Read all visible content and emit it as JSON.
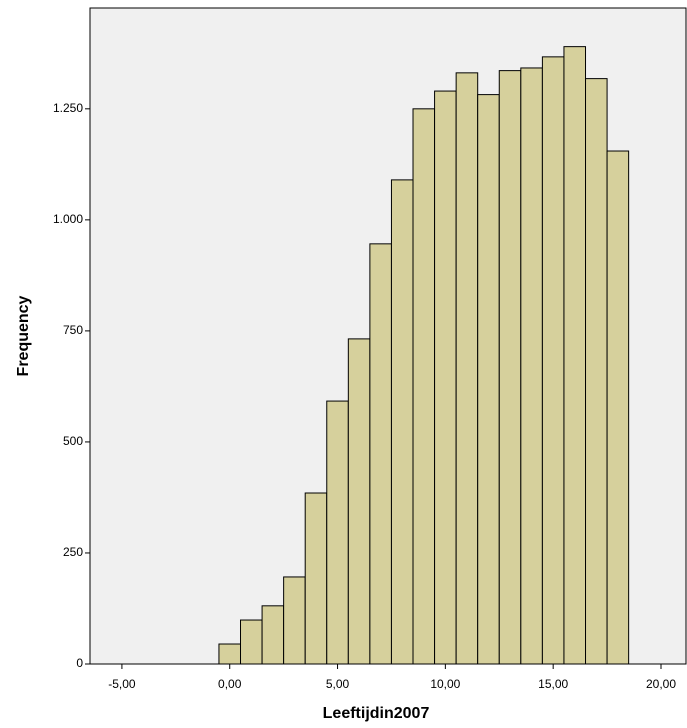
{
  "chart_data": {
    "type": "histogram",
    "x_label": "Leeftijdin2007",
    "y_label": "Frequency",
    "bins": [
      -0.5,
      0.5,
      1.5,
      2.5,
      3.5,
      4.5,
      5.5,
      6.5,
      7.5,
      8.5,
      9.5,
      10.5,
      11.5,
      12.5,
      13.5,
      14.5,
      15.5,
      16.5,
      17.5,
      18.5
    ],
    "values": [
      45,
      99,
      131,
      196,
      385,
      592,
      732,
      946,
      1090,
      1250,
      1290,
      1331,
      1282,
      1336,
      1342,
      1367,
      1390,
      1318,
      1155
    ],
    "color": "#d6d09c",
    "xlim": [
      -6.48,
      21.16
    ],
    "xticks": [
      {
        "value": -5,
        "label": "-5,00"
      },
      {
        "value": 0,
        "label": "0,00"
      },
      {
        "value": 5,
        "label": "5,00"
      },
      {
        "value": 10,
        "label": "10,00"
      },
      {
        "value": 15,
        "label": "15,00"
      },
      {
        "value": 20,
        "label": "20,00"
      }
    ],
    "ylim": [
      0,
      1477
    ],
    "yticks": [
      0,
      250,
      500,
      750,
      {
        "value": 1000,
        "label": "1.000"
      },
      {
        "value": 1250,
        "label": "1.250"
      }
    ]
  }
}
